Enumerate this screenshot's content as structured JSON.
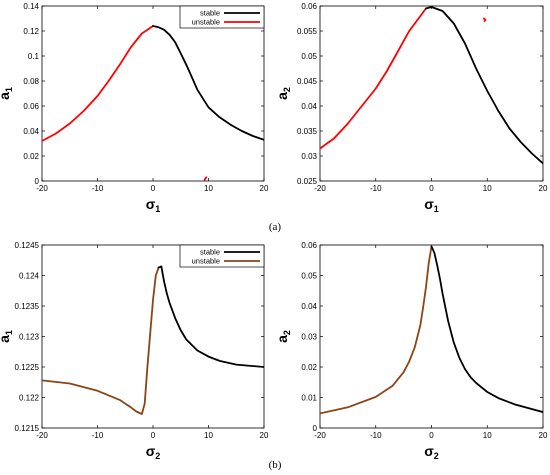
{
  "captions": [
    "(a)",
    "(b)"
  ],
  "chart_data": [
    {
      "type": "line",
      "xlabel": "σ",
      "xlabel_sub": "1",
      "ylabel": "a",
      "ylabel_sub": "1",
      "xlim": [
        -20,
        20
      ],
      "ylim": [
        0,
        0.14
      ],
      "xticks": [
        -20,
        -10,
        0,
        10,
        20
      ],
      "yticks": [
        0,
        0.02,
        0.04,
        0.06,
        0.08,
        0.1,
        0.12,
        0.14
      ],
      "ytick_labels": [
        "0",
        "0.02",
        "0.04",
        "0.06",
        "0.08",
        "0.1",
        "0.12",
        "0.14"
      ],
      "legend": {
        "position": "top-right",
        "entries": [
          {
            "label": "stable",
            "color": "#000000"
          },
          {
            "label": "unstable",
            "color": "#ff0000"
          }
        ]
      },
      "series": [
        {
          "name": "unstable",
          "color": "#ff0000",
          "x": [
            -20,
            -17.5,
            -15,
            -12.5,
            -10,
            -8,
            -6,
            -4,
            -2,
            0
          ],
          "y": [
            0.032,
            0.038,
            0.046,
            0.056,
            0.068,
            0.08,
            0.093,
            0.107,
            0.118,
            0.124
          ]
        },
        {
          "name": "stable",
          "color": "#000000",
          "x": [
            0,
            1,
            2,
            3,
            4,
            5,
            6,
            7,
            8,
            10,
            12,
            14,
            16,
            18,
            20
          ],
          "y": [
            0.124,
            0.123,
            0.121,
            0.117,
            0.111,
            0.102,
            0.093,
            0.083,
            0.073,
            0.059,
            0.051,
            0.045,
            0.04,
            0.036,
            0.033
          ]
        },
        {
          "name": "unstable",
          "color": "#ff0000",
          "x": [
            9.3,
            9.6
          ],
          "y": [
            0.001,
            0.003
          ]
        }
      ]
    },
    {
      "type": "line",
      "xlabel": "σ",
      "xlabel_sub": "1",
      "ylabel": "a",
      "ylabel_sub": "2",
      "xlim": [
        -20,
        20
      ],
      "ylim": [
        0.025,
        0.06
      ],
      "xticks": [
        -20,
        -10,
        0,
        10,
        20
      ],
      "yticks": [
        0.025,
        0.03,
        0.035,
        0.04,
        0.045,
        0.05,
        0.055,
        0.06
      ],
      "ytick_labels": [
        "0.025",
        "0.03",
        "0.035",
        "0.04",
        "0.045",
        "0.05",
        "0.055",
        "0.06"
      ],
      "series": [
        {
          "name": "unstable",
          "color": "#ff0000",
          "x": [
            -20,
            -17.5,
            -15,
            -12.5,
            -10,
            -8,
            -6,
            -4,
            -2,
            -1
          ],
          "y": [
            0.0315,
            0.0335,
            0.0365,
            0.04,
            0.0435,
            0.047,
            0.051,
            0.055,
            0.058,
            0.0595
          ]
        },
        {
          "name": "stable",
          "color": "#000000",
          "x": [
            -1,
            0,
            2,
            4,
            6,
            8,
            10,
            12,
            14,
            16,
            18,
            20
          ],
          "y": [
            0.0595,
            0.0598,
            0.059,
            0.0565,
            0.0525,
            0.0475,
            0.043,
            0.039,
            0.0355,
            0.0328,
            0.0305,
            0.0285
          ]
        },
        {
          "name": "unstable",
          "color": "#ff0000",
          "x": [
            9.4,
            9.7,
            9.5
          ],
          "y": [
            0.0575,
            0.0572,
            0.057
          ]
        }
      ]
    },
    {
      "type": "line",
      "xlabel": "σ",
      "xlabel_sub": "2",
      "ylabel": "a",
      "ylabel_sub": "1",
      "xlim": [
        -20,
        20
      ],
      "ylim": [
        0.1215,
        0.1245
      ],
      "xticks": [
        -20,
        -10,
        0,
        10,
        20
      ],
      "yticks": [
        0.1215,
        0.122,
        0.1225,
        0.123,
        0.1235,
        0.124,
        0.1245
      ],
      "ytick_labels": [
        "0.1215",
        "0.122",
        "0.1225",
        "0.123",
        "0.1235",
        "0.124",
        "0.1245"
      ],
      "legend": {
        "position": "top-right",
        "entries": [
          {
            "label": "stable",
            "color": "#000000"
          },
          {
            "label": "unstable",
            "color": "#8b4513"
          }
        ]
      },
      "series": [
        {
          "name": "unstable",
          "color": "#8b4513",
          "x": [
            -20,
            -15,
            -10,
            -6,
            -4,
            -3,
            -2,
            -1.5,
            -1,
            0,
            0.5,
            1
          ],
          "y": [
            0.12228,
            0.12223,
            0.12211,
            0.12196,
            0.12184,
            0.12177,
            0.12173,
            0.1219,
            0.1225,
            0.1236,
            0.124,
            0.12413
          ]
        },
        {
          "name": "stable",
          "color": "#000000",
          "x": [
            1,
            1.5,
            2,
            2.5,
            3,
            4,
            5,
            6,
            8,
            10,
            12,
            15,
            20
          ],
          "y": [
            0.12413,
            0.12415,
            0.1239,
            0.1237,
            0.12355,
            0.1233,
            0.1231,
            0.12295,
            0.12277,
            0.12267,
            0.1226,
            0.12254,
            0.1225
          ]
        }
      ]
    },
    {
      "type": "line",
      "xlabel": "σ",
      "xlabel_sub": "2",
      "ylabel": "a",
      "ylabel_sub": "2",
      "xlim": [
        -20,
        20
      ],
      "ylim": [
        0,
        0.06
      ],
      "xticks": [
        -20,
        -10,
        0,
        10,
        20
      ],
      "yticks": [
        0,
        0.01,
        0.02,
        0.03,
        0.04,
        0.05,
        0.06
      ],
      "ytick_labels": [
        "0",
        "0.01",
        "0.02",
        "0.03",
        "0.04",
        "0.05",
        "0.06"
      ],
      "series": [
        {
          "name": "unstable",
          "color": "#8b4513",
          "x": [
            -20,
            -15,
            -10,
            -7,
            -5,
            -4,
            -3,
            -2,
            -1.5,
            -1,
            -0.5,
            0
          ],
          "y": [
            0.0048,
            0.0068,
            0.0102,
            0.0138,
            0.0183,
            0.0218,
            0.0265,
            0.0338,
            0.0395,
            0.046,
            0.054,
            0.0595
          ]
        },
        {
          "name": "stable",
          "color": "#000000",
          "x": [
            0,
            0.5,
            1,
            1.5,
            2,
            3,
            4,
            5,
            6,
            7,
            8,
            10,
            12,
            15,
            20
          ],
          "y": [
            0.0595,
            0.0575,
            0.0535,
            0.049,
            0.044,
            0.035,
            0.028,
            0.023,
            0.0193,
            0.0167,
            0.0148,
            0.0118,
            0.0098,
            0.0077,
            0.0052
          ]
        }
      ]
    }
  ]
}
